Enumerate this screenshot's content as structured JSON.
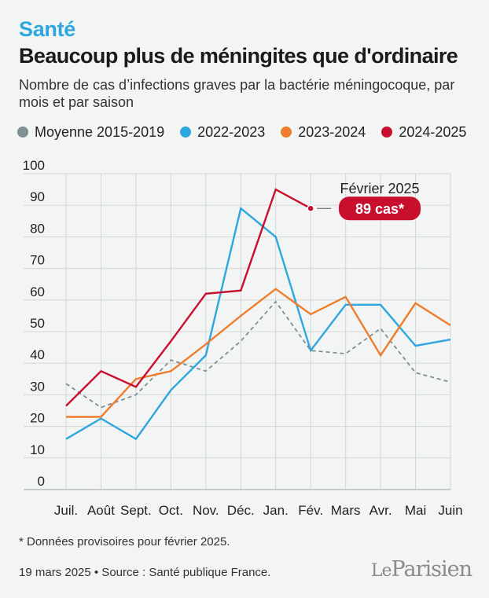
{
  "header": {
    "kicker": "Santé",
    "title": "Beaucoup plus de méningites que d'ordinaire",
    "subtitle": "Nombre de cas d’infections graves par la bactérie méningocoque, par mois et par saison"
  },
  "chart_data": {
    "type": "line",
    "categories": [
      "Juil.",
      "Août",
      "Sept.",
      "Oct.",
      "Nov.",
      "Déc.",
      "Jan.",
      "Fév.",
      "Mars",
      "Avr.",
      "Mai",
      "Juin"
    ],
    "ylim": [
      0,
      100
    ],
    "yticks": [
      0,
      10,
      20,
      30,
      40,
      50,
      60,
      70,
      80,
      90,
      100
    ],
    "grid": true,
    "series": [
      {
        "name": "Moyenne 2015-2019",
        "color": "#7e8f96",
        "dashed": true,
        "values": [
          33.5,
          26,
          30,
          41,
          37.5,
          47,
          59.5,
          44,
          43,
          51,
          37,
          34
        ]
      },
      {
        "name": "2022-2023",
        "color": "#2ea6de",
        "dashed": false,
        "values": [
          16,
          22.5,
          16,
          31.5,
          42.5,
          89,
          80,
          44,
          58.5,
          58.5,
          45.5,
          47.5
        ]
      },
      {
        "name": "2023-2024",
        "color": "#ef7d2e",
        "dashed": false,
        "values": [
          23,
          23,
          35,
          37.5,
          46,
          55,
          63.5,
          55.5,
          61,
          42.5,
          59,
          52
        ]
      },
      {
        "name": "2024-2025",
        "color": "#c8102e",
        "dashed": false,
        "values": [
          26.5,
          37.5,
          32.5,
          47,
          62,
          63,
          95,
          89,
          null,
          null,
          null,
          null
        ]
      }
    ],
    "annotation": {
      "label": "Février 2025",
      "badge": "89 cas*",
      "category": "Fév.",
      "value": 89,
      "color": "#c8102e"
    }
  },
  "footnote": "* Données provisoires pour février 2025.",
  "source": "19 mars 2025 • Source : Santé publique France.",
  "logo": {
    "part1": "Le",
    "part2": "Parisien"
  }
}
